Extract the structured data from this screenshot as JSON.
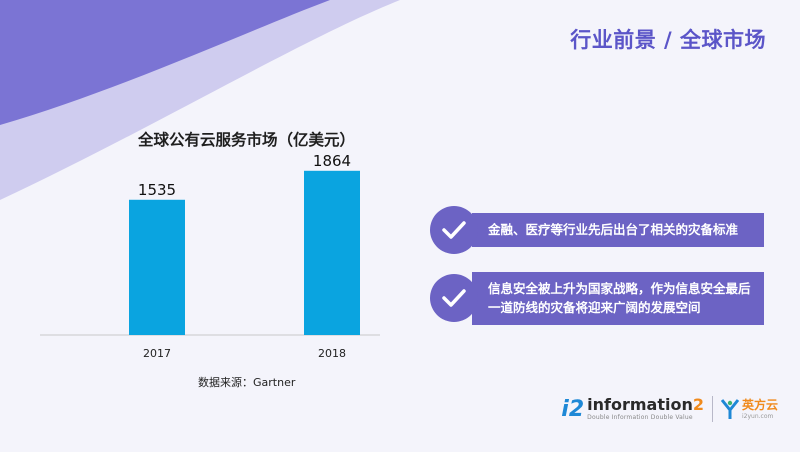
{
  "header": {
    "title": "行业前景 / 全球市场"
  },
  "chart_data": {
    "type": "bar",
    "title": "全球公有云服务市场（亿美元）",
    "categories": [
      "2017",
      "2018"
    ],
    "values": [
      1535,
      1864
    ],
    "value_labels": [
      "1535",
      "1864"
    ],
    "ylim": [
      0,
      2100
    ],
    "grid": false,
    "bar_color": "#0aa4e0",
    "source": "数据来源：Gartner"
  },
  "points": [
    {
      "text": "金融、医疗等行业先后出台了相关的灾备标准"
    },
    {
      "text": "信息安全被上升为国家战略，作为信息安全最后一道防线的灾备将迎来广阔的发展空间"
    }
  ],
  "logos": {
    "i2_mark": "i2",
    "i2_name_main": "information",
    "i2_name_digit": "2",
    "i2_tagline": "Double Information Double Value",
    "yf_name": "英方云",
    "yf_domain": "i2yun.com"
  },
  "colors": {
    "accent": "#5b55c8",
    "point_bg": "#6c63c4",
    "bar": "#0aa4e0"
  }
}
